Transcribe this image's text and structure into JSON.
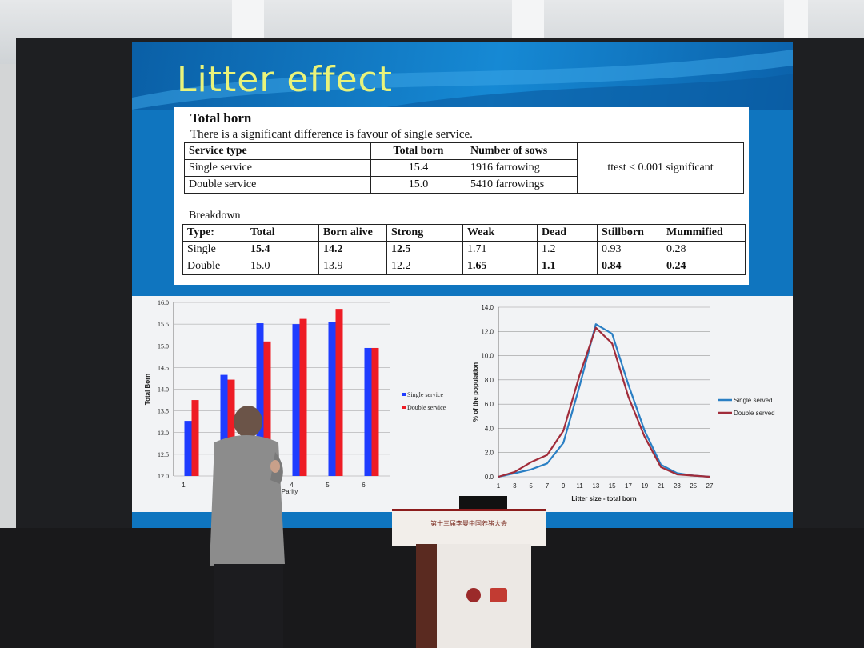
{
  "slide": {
    "title": "Litter effect",
    "section": "Total born",
    "subtitle": "There is a significant difference is favour of single service.",
    "summary_headers": [
      "Service type",
      "Total born",
      "Number of sows"
    ],
    "summary_rows": [
      [
        "Single service",
        "15.4",
        "1916 farrowing"
      ],
      [
        "Double service",
        "15.0",
        "5410 farrowings"
      ]
    ],
    "ttest": "ttest < 0.001 significant",
    "breakdown_label": "Breakdown",
    "breakdown_headers": [
      "Type:",
      "Total",
      "Born alive",
      "Strong",
      "Weak",
      "Dead",
      "Stillborn",
      "Mummified"
    ],
    "breakdown_rows": [
      [
        "Single",
        "15.4",
        "14.2",
        "12.5",
        "1.71",
        "1.2",
        "0.93",
        "0.28"
      ],
      [
        "Double",
        "15.0",
        "13.9",
        "12.2",
        "1.65",
        "1.1",
        "0.84",
        "0.24"
      ]
    ]
  },
  "chart_data": [
    {
      "type": "bar",
      "categories": [
        "1",
        "2",
        "3",
        "4",
        "5",
        "6"
      ],
      "series": [
        {
          "name": "Single service",
          "values": [
            13.27,
            14.33,
            15.52,
            15.5,
            15.55,
            14.95
          ],
          "color": "#1f3cff"
        },
        {
          "name": "Double service",
          "values": [
            13.75,
            14.22,
            15.1,
            15.62,
            15.85,
            14.95
          ],
          "color": "#ee1c25"
        }
      ],
      "ylabel": "Total Born",
      "xlabel": "Parity",
      "ylim": [
        12.0,
        16.0
      ],
      "yticks": [
        "12.0",
        "12.5",
        "13.0",
        "13.5",
        "14.0",
        "14.5",
        "15.0",
        "15.5",
        "16.0"
      ],
      "legend": "right",
      "grid": true
    },
    {
      "type": "line",
      "x": [
        1,
        3,
        5,
        7,
        9,
        11,
        13,
        15,
        17,
        19,
        21,
        23,
        25,
        27
      ],
      "series": [
        {
          "name": "Single served",
          "values": [
            0.0,
            0.3,
            0.6,
            1.1,
            2.8,
            7.5,
            12.6,
            11.8,
            7.6,
            3.8,
            1.0,
            0.3,
            0.1,
            0.0
          ],
          "color": "#2a7fc4"
        },
        {
          "name": "Double served",
          "values": [
            0.0,
            0.4,
            1.2,
            1.8,
            3.8,
            8.4,
            12.3,
            11.0,
            6.6,
            3.3,
            0.8,
            0.2,
            0.1,
            0.0
          ],
          "color": "#a12c3a"
        }
      ],
      "ylabel": "% of the population",
      "xlabel": "Litter size - total born",
      "ylim": [
        0.0,
        14.0
      ],
      "yticks": [
        "0.0",
        "2.0",
        "4.0",
        "6.0",
        "8.0",
        "10.0",
        "12.0",
        "14.0"
      ],
      "xticks": [
        "1",
        "3",
        "5",
        "7",
        "9",
        "11",
        "13",
        "15",
        "17",
        "19",
        "21",
        "23",
        "25",
        "27"
      ],
      "legend": "right",
      "grid": true
    }
  ],
  "podium": {
    "sign": "第十三届李曼中国养猪大会"
  },
  "colors": {
    "title": "#e9f37a",
    "slide_blue": "#0f75bf"
  }
}
